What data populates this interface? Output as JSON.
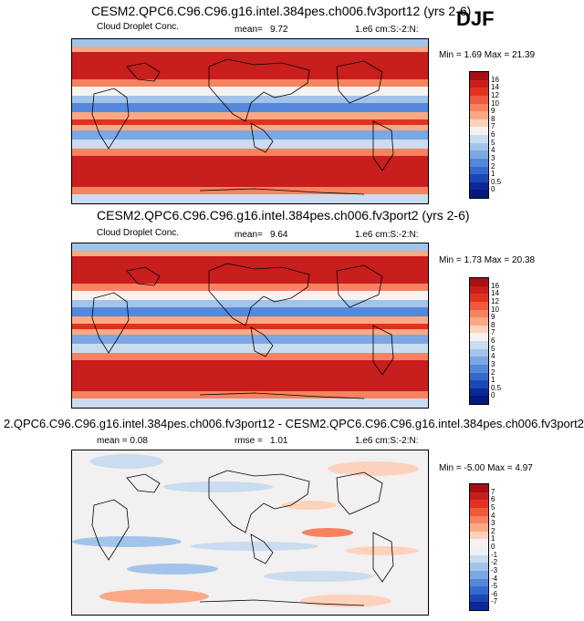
{
  "season": "DJF",
  "panels": [
    {
      "title": "CESM2.QPC6.C96.C96.g16.intel.384pes.ch006.fv3port12 (yrs 2-6)",
      "left_label": "Cloud Droplet Conc.",
      "stat_label": "mean=",
      "stat_value": "9.72",
      "units": "1.e6 cm:S:-2:N:",
      "minmax": "Min =  1.69 Max =  21.39",
      "colorbar_labels": [
        "16",
        "14",
        "12",
        "10",
        "9",
        "8",
        "7",
        "6",
        "5",
        "4",
        "3",
        "2",
        "1",
        "0.5",
        "0"
      ],
      "colors": [
        "#a50f15",
        "#c81e1e",
        "#e0321e",
        "#ef5a3c",
        "#f7825f",
        "#fba985",
        "#fdd2bc",
        "#f4f3ef",
        "#c9dcf0",
        "#a3c4ea",
        "#7ba7e2",
        "#5588d8",
        "#346acb",
        "#1c47b5",
        "#0a2898",
        "#041a78"
      ]
    },
    {
      "title": "CESM2.QPC6.C96.C96.g16.intel.384pes.ch006.fv3port2 (yrs 2-6)",
      "left_label": "Cloud Droplet Conc.",
      "stat_label": "mean=",
      "stat_value": "9.64",
      "units": "1.e6 cm:S:-2:N:",
      "minmax": "Min =  1.73 Max =  20.38",
      "colorbar_labels": [
        "16",
        "14",
        "12",
        "10",
        "9",
        "8",
        "7",
        "6",
        "5",
        "4",
        "3",
        "2",
        "1",
        "0.5",
        "0"
      ],
      "colors": [
        "#a50f15",
        "#c81e1e",
        "#e0321e",
        "#ef5a3c",
        "#f7825f",
        "#fba985",
        "#fdd2bc",
        "#f4f3ef",
        "#c9dcf0",
        "#a3c4ea",
        "#7ba7e2",
        "#5588d8",
        "#346acb",
        "#1c47b5",
        "#0a2898",
        "#041a78"
      ]
    },
    {
      "title": "2.QPC6.C96.C96.g16.intel.384pes.ch006.fv3port12 - CESM2.QPC6.C96.C96.g16.intel.384pes.ch006.fv3port2",
      "left_label": "mean =   0.08",
      "stat_label": "rmse =",
      "stat_value": "1.01",
      "units": "1.e6 cm:S:-2:N:",
      "minmax": "Min =  -5.00 Max =   4.97",
      "colorbar_labels": [
        "7",
        "6",
        "5",
        "4",
        "3",
        "2",
        "1",
        "0",
        "-1",
        "-2",
        "-3",
        "-4",
        "-5",
        "-6",
        "-7"
      ],
      "colors": [
        "#a50f15",
        "#c81e1e",
        "#e0321e",
        "#ef5a3c",
        "#f7825f",
        "#fba985",
        "#fdd2bc",
        "#f7f2ee",
        "#eef1f7",
        "#c9dcf0",
        "#a3c4ea",
        "#7ba7e2",
        "#5588d8",
        "#346acb",
        "#1c47b5",
        "#0a2898"
      ]
    }
  ],
  "chart_data": {
    "type": "heatmap",
    "season": "DJF",
    "variable": "Cloud Droplet Conc.",
    "units": "1.e6 cm:S:-2:N:",
    "maps": [
      {
        "title": "CESM2.QPC6.C96.C96.g16.intel.384pes.ch006.fv3port12 (yrs 2-6)",
        "mean": 9.72,
        "min": 1.69,
        "max": 21.39
      },
      {
        "title": "CESM2.QPC6.C96.C96.g16.intel.384pes.ch006.fv3port2 (yrs 2-6)",
        "mean": 9.64,
        "min": 1.73,
        "max": 20.38
      },
      {
        "title": "2.QPC6.C96.C96.g16.intel.384pes.ch006.fv3port12 - CESM2.QPC6.C96.C96.g16.intel.384pes.ch006.fv3port2",
        "mean": 0.08,
        "rmse": 1.01,
        "min": -5.0,
        "max": 4.97
      }
    ]
  }
}
